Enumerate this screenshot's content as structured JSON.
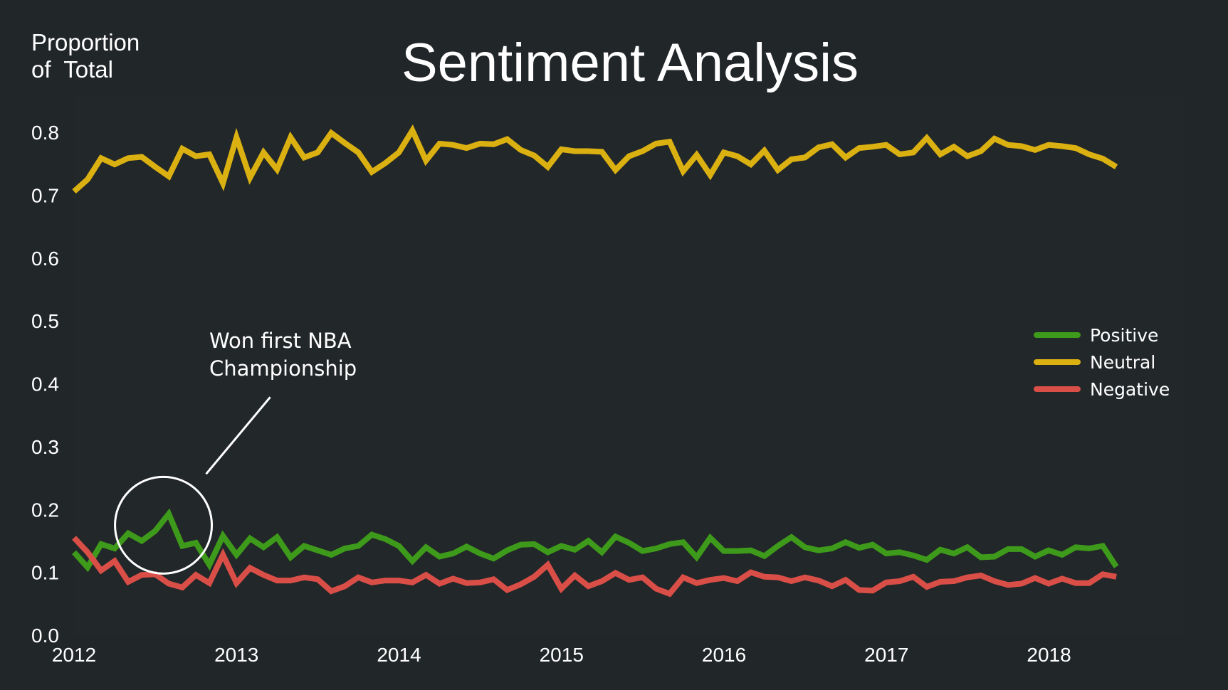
{
  "chart_data": {
    "type": "line",
    "title": "Sentiment Analysis",
    "ylabel": [
      "Proportion",
      "of  Total"
    ],
    "xlabel": "",
    "xlim": [
      2012.0,
      2018.83
    ],
    "ylim": [
      0.0,
      0.86
    ],
    "x_ticks": [
      2012,
      2013,
      2014,
      2015,
      2016,
      2017,
      2018
    ],
    "x_tick_labels": [
      "2012",
      "2013",
      "2014",
      "2015",
      "2016",
      "2017",
      "2018"
    ],
    "y_ticks": [
      0.0,
      0.1,
      0.2,
      0.3,
      0.4,
      0.5,
      0.6,
      0.7,
      0.8
    ],
    "y_tick_labels": [
      "0.0",
      "0.1",
      "0.2",
      "0.3",
      "0.4",
      "0.5",
      "0.6",
      "0.7",
      "0.8"
    ],
    "grid": false,
    "legend": {
      "position": "right",
      "entries": [
        "Positive",
        "Neutral",
        "Negative"
      ]
    },
    "start_year": 2012.0,
    "step_years": 0.0833,
    "series": [
      {
        "name": "Positive",
        "color": "#3e9a1a",
        "values": [
          0.132,
          0.108,
          0.145,
          0.138,
          0.162,
          0.15,
          0.166,
          0.193,
          0.142,
          0.147,
          0.112,
          0.158,
          0.128,
          0.154,
          0.14,
          0.156,
          0.124,
          0.142,
          0.135,
          0.128,
          0.138,
          0.142,
          0.16,
          0.153,
          0.142,
          0.118,
          0.14,
          0.125,
          0.13,
          0.141,
          0.13,
          0.122,
          0.135,
          0.144,
          0.145,
          0.132,
          0.142,
          0.136,
          0.15,
          0.132,
          0.157,
          0.147,
          0.134,
          0.138,
          0.145,
          0.148,
          0.124,
          0.155,
          0.134,
          0.134,
          0.135,
          0.126,
          0.142,
          0.156,
          0.14,
          0.135,
          0.138,
          0.148,
          0.139,
          0.144,
          0.13,
          0.132,
          0.127,
          0.12,
          0.136,
          0.13,
          0.14,
          0.124,
          0.125,
          0.137,
          0.137,
          0.125,
          0.135,
          0.128,
          0.14,
          0.138,
          0.142,
          0.109
        ]
      },
      {
        "name": "Neutral",
        "color": "#dbb112",
        "values": [
          0.706,
          0.725,
          0.759,
          0.749,
          0.759,
          0.761,
          0.745,
          0.73,
          0.774,
          0.762,
          0.765,
          0.719,
          0.792,
          0.728,
          0.768,
          0.741,
          0.792,
          0.76,
          0.768,
          0.799,
          0.783,
          0.768,
          0.737,
          0.751,
          0.768,
          0.803,
          0.755,
          0.782,
          0.78,
          0.775,
          0.782,
          0.781,
          0.789,
          0.772,
          0.763,
          0.745,
          0.773,
          0.77,
          0.77,
          0.769,
          0.74,
          0.762,
          0.77,
          0.782,
          0.785,
          0.738,
          0.764,
          0.732,
          0.768,
          0.762,
          0.749,
          0.771,
          0.74,
          0.757,
          0.76,
          0.776,
          0.781,
          0.76,
          0.775,
          0.777,
          0.78,
          0.765,
          0.768,
          0.791,
          0.765,
          0.777,
          0.762,
          0.77,
          0.79,
          0.78,
          0.778,
          0.772,
          0.78,
          0.778,
          0.775,
          0.765,
          0.758,
          0.745
        ]
      },
      {
        "name": "Negative",
        "color": "#d94f48",
        "values": [
          0.155,
          0.132,
          0.103,
          0.118,
          0.085,
          0.096,
          0.097,
          0.082,
          0.076,
          0.096,
          0.083,
          0.128,
          0.083,
          0.107,
          0.096,
          0.087,
          0.087,
          0.092,
          0.089,
          0.07,
          0.078,
          0.092,
          0.084,
          0.087,
          0.087,
          0.084,
          0.096,
          0.082,
          0.09,
          0.083,
          0.084,
          0.089,
          0.072,
          0.081,
          0.093,
          0.112,
          0.074,
          0.095,
          0.078,
          0.086,
          0.099,
          0.088,
          0.092,
          0.074,
          0.066,
          0.092,
          0.083,
          0.088,
          0.091,
          0.086,
          0.1,
          0.093,
          0.092,
          0.086,
          0.092,
          0.087,
          0.078,
          0.088,
          0.072,
          0.071,
          0.084,
          0.086,
          0.093,
          0.077,
          0.085,
          0.086,
          0.092,
          0.095,
          0.086,
          0.08,
          0.082,
          0.091,
          0.082,
          0.09,
          0.083,
          0.083,
          0.097,
          0.093
        ]
      }
    ],
    "annotations": [
      {
        "text": [
          "Won first NBA",
          "Championship"
        ],
        "target_x": 2012.55,
        "target_y": 0.175
      }
    ]
  }
}
